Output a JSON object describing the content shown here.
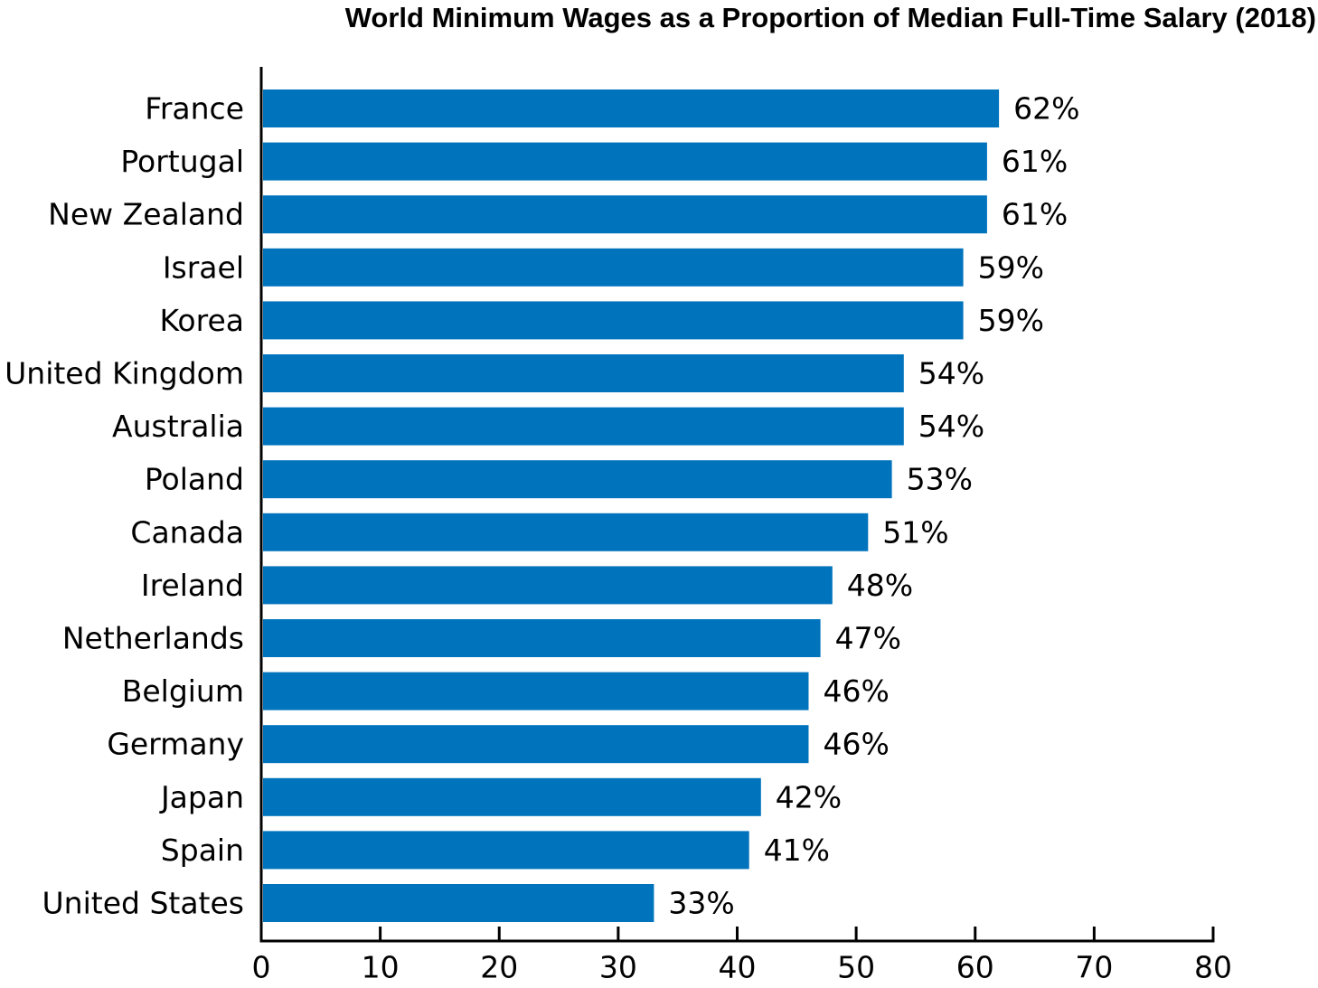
{
  "chart_data": {
    "type": "bar",
    "orientation": "horizontal",
    "title": "World Minimum Wages as a Proportion of Median Full-Time Salary (2018)",
    "xlabel": "",
    "ylabel": "",
    "categories": [
      "France",
      "Portugal",
      "New Zealand",
      "Israel",
      "Korea",
      "United Kingdom",
      "Australia",
      "Poland",
      "Canada",
      "Ireland",
      "Netherlands",
      "Belgium",
      "Germany",
      "Japan",
      "Spain",
      "United States"
    ],
    "values": [
      62,
      61,
      61,
      59,
      59,
      54,
      54,
      53,
      51,
      48,
      47,
      46,
      46,
      42,
      41,
      33
    ],
    "value_labels": [
      "62%",
      "61%",
      "61%",
      "59%",
      "59%",
      "54%",
      "54%",
      "53%",
      "51%",
      "48%",
      "47%",
      "46%",
      "46%",
      "42%",
      "41%",
      "33%"
    ],
    "xlim": [
      0,
      80
    ],
    "xticks": [
      0,
      10,
      20,
      30,
      40,
      50,
      60,
      70,
      80
    ],
    "xtick_labels": [
      "0",
      "10",
      "20",
      "30",
      "40",
      "50",
      "60",
      "70",
      "80"
    ],
    "grid": false,
    "legend": "none",
    "colors": {
      "bar": "#0073BD",
      "axis": "#000000",
      "text": "#000000"
    }
  }
}
